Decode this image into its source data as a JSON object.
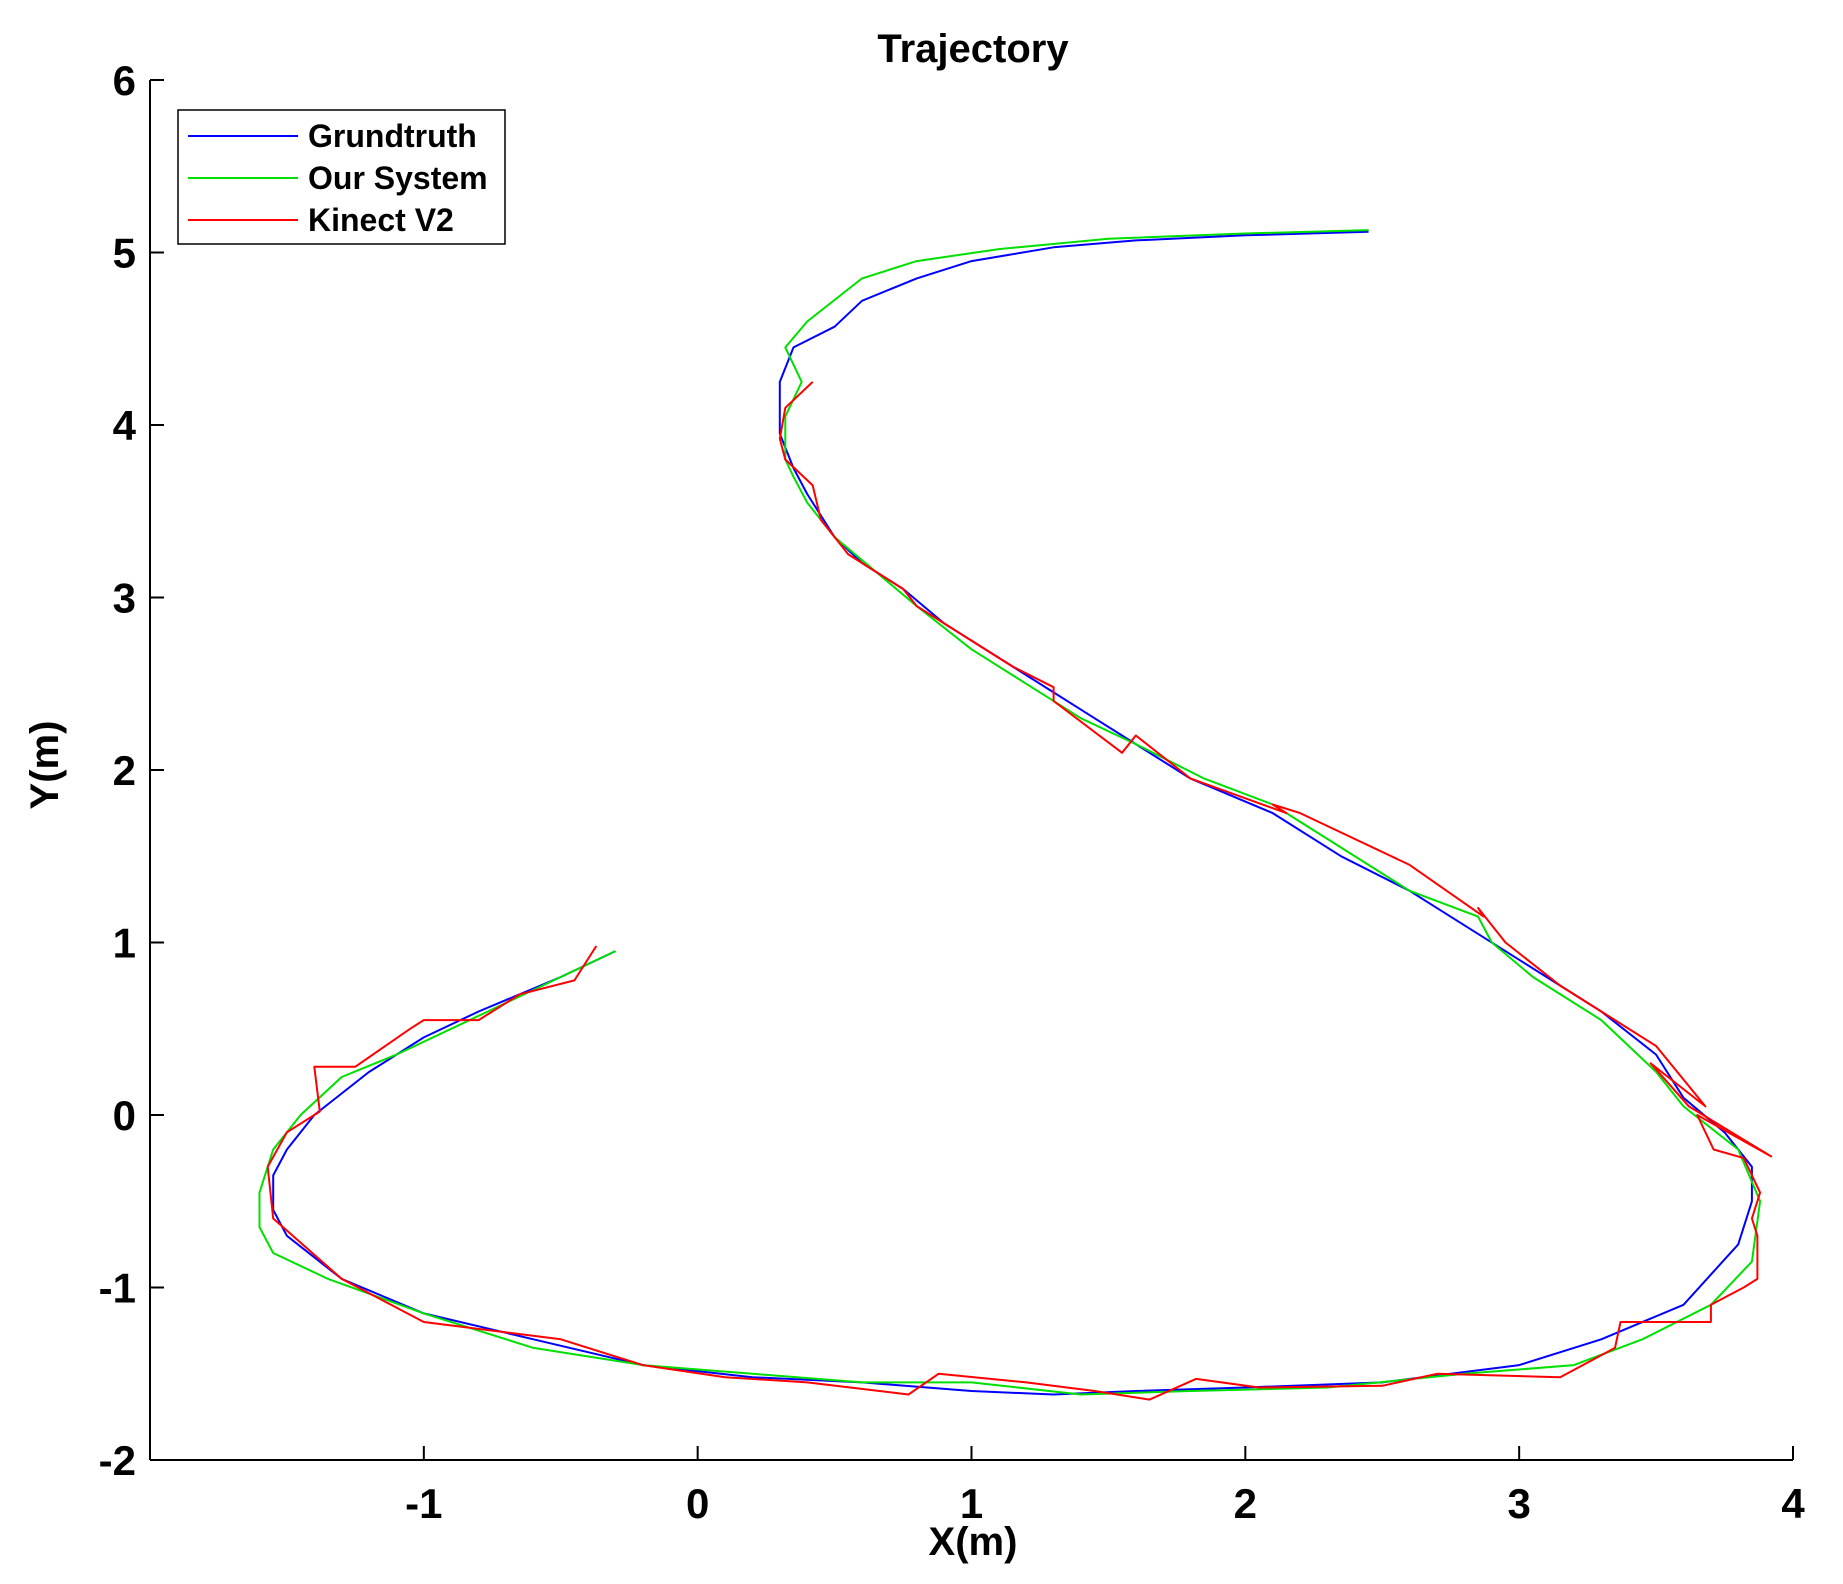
{
  "chart_data": {
    "type": "line",
    "title": "Trajectory",
    "xlabel": "X(m)",
    "ylabel": "Y(m)",
    "xlim": [
      -2,
      4
    ],
    "ylim": [
      -2,
      6
    ],
    "xticks": [
      -1,
      0,
      1,
      2,
      3,
      4
    ],
    "yticks": [
      -2,
      -1,
      0,
      1,
      2,
      3,
      4,
      5,
      6
    ],
    "grid": false,
    "legend_position": "top-left",
    "series": [
      {
        "name": "Grundtruth",
        "color": "#0000ff",
        "x": [
          -0.3,
          -0.5,
          -0.8,
          -1.0,
          -1.2,
          -1.4,
          -1.5,
          -1.55,
          -1.55,
          -1.5,
          -1.3,
          -1.0,
          -0.6,
          -0.2,
          0.2,
          0.6,
          1.0,
          1.3,
          1.6,
          2.0,
          2.5,
          3.0,
          3.3,
          3.6,
          3.8,
          3.85,
          3.85,
          3.75,
          3.6,
          3.5,
          3.3,
          3.0,
          2.8,
          2.6,
          2.35,
          2.1,
          1.8,
          1.6,
          1.45,
          1.3,
          1.1,
          0.9,
          0.75,
          0.6,
          0.5,
          0.4,
          0.35,
          0.3,
          0.3,
          0.35,
          0.5,
          0.6,
          0.8,
          1.0,
          1.3,
          1.6,
          2.0,
          2.45
        ],
        "y": [
          0.95,
          0.8,
          0.6,
          0.45,
          0.25,
          0.0,
          -0.2,
          -0.35,
          -0.55,
          -0.7,
          -0.95,
          -1.15,
          -1.3,
          -1.45,
          -1.52,
          -1.55,
          -1.6,
          -1.62,
          -1.6,
          -1.58,
          -1.55,
          -1.45,
          -1.3,
          -1.1,
          -0.75,
          -0.5,
          -0.3,
          -0.1,
          0.1,
          0.35,
          0.6,
          0.9,
          1.1,
          1.3,
          1.5,
          1.75,
          1.95,
          2.15,
          2.3,
          2.45,
          2.65,
          2.85,
          3.05,
          3.2,
          3.35,
          3.6,
          3.75,
          3.95,
          4.25,
          4.45,
          4.57,
          4.72,
          4.85,
          4.95,
          5.03,
          5.07,
          5.1,
          5.12
        ]
      },
      {
        "name": "Our System",
        "color": "#00e000",
        "x": [
          -0.3,
          -0.5,
          -0.7,
          -0.9,
          -1.1,
          -1.3,
          -1.45,
          -1.55,
          -1.6,
          -1.6,
          -1.55,
          -1.35,
          -1.0,
          -0.6,
          -0.2,
          0.2,
          0.6,
          1.0,
          1.4,
          1.8,
          2.3,
          2.8,
          3.2,
          3.45,
          3.7,
          3.85,
          3.88,
          3.8,
          3.6,
          3.5,
          3.3,
          3.05,
          2.9,
          2.85,
          2.6,
          2.35,
          2.1,
          1.85,
          1.6,
          1.4,
          1.2,
          1.0,
          0.8,
          0.65,
          0.5,
          0.4,
          0.35,
          0.32,
          0.32,
          0.38,
          0.32,
          0.4,
          0.6,
          0.8,
          1.1,
          1.5,
          2.0,
          2.45
        ],
        "y": [
          0.95,
          0.8,
          0.65,
          0.5,
          0.35,
          0.22,
          0.0,
          -0.2,
          -0.45,
          -0.65,
          -0.8,
          -0.95,
          -1.15,
          -1.35,
          -1.45,
          -1.5,
          -1.55,
          -1.55,
          -1.62,
          -1.6,
          -1.58,
          -1.5,
          -1.45,
          -1.3,
          -1.1,
          -0.85,
          -0.5,
          -0.2,
          0.05,
          0.25,
          0.55,
          0.8,
          1.0,
          1.15,
          1.3,
          1.55,
          1.8,
          1.95,
          2.15,
          2.3,
          2.5,
          2.7,
          2.95,
          3.15,
          3.35,
          3.55,
          3.7,
          3.8,
          4.05,
          4.25,
          4.45,
          4.6,
          4.85,
          4.95,
          5.02,
          5.08,
          5.11,
          5.13
        ]
      },
      {
        "name": "Kinect V2",
        "color": "#ff0000",
        "x": [
          -0.37,
          -0.45,
          -0.65,
          -0.8,
          -1.0,
          -1.05,
          -1.25,
          -1.4,
          -1.38,
          -1.5,
          -1.57,
          -1.55,
          -1.3,
          -1.0,
          -0.5,
          -0.2,
          0.1,
          0.4,
          0.77,
          0.88,
          1.2,
          1.45,
          1.65,
          1.82,
          2.05,
          2.5,
          2.7,
          3.15,
          3.35,
          3.37,
          3.7,
          3.7,
          3.82,
          3.87,
          3.87,
          3.85,
          3.88,
          3.82,
          3.71,
          3.65,
          3.92,
          3.62,
          3.48,
          3.68,
          3.5,
          3.15,
          2.95,
          2.85,
          2.87,
          2.6,
          2.2,
          2.1,
          2.15,
          1.8,
          1.6,
          1.55,
          1.3,
          1.3,
          1.15,
          1.0,
          0.8,
          0.75,
          0.55,
          0.45,
          0.42,
          0.32,
          0.3,
          0.32,
          0.42
        ],
        "y": [
          0.98,
          0.78,
          0.7,
          0.55,
          0.55,
          0.5,
          0.28,
          0.28,
          0.02,
          -0.1,
          -0.3,
          -0.6,
          -0.95,
          -1.2,
          -1.3,
          -1.45,
          -1.52,
          -1.55,
          -1.62,
          -1.5,
          -1.55,
          -1.6,
          -1.65,
          -1.53,
          -1.58,
          -1.57,
          -1.5,
          -1.52,
          -1.35,
          -1.2,
          -1.2,
          -1.1,
          -1.0,
          -0.95,
          -0.7,
          -0.6,
          -0.45,
          -0.25,
          -0.2,
          0.0,
          -0.24,
          0.05,
          0.3,
          0.05,
          0.4,
          0.75,
          1.0,
          1.2,
          1.15,
          1.45,
          1.75,
          1.8,
          1.75,
          1.95,
          2.2,
          2.1,
          2.4,
          2.48,
          2.6,
          2.75,
          2.95,
          3.05,
          3.25,
          3.45,
          3.65,
          3.8,
          3.92,
          4.1,
          4.25
        ]
      }
    ]
  }
}
